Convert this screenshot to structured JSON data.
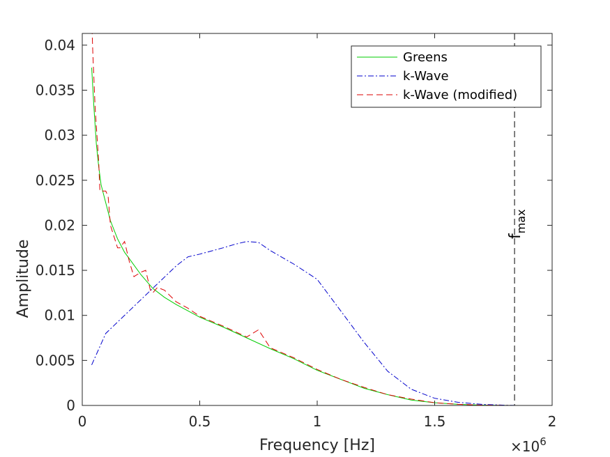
{
  "chart_data": {
    "type": "line",
    "xlabel": "Frequency [Hz]",
    "ylabel": "Amplitude",
    "x_multiplier_base": "×10",
    "x_multiplier_exp": "6",
    "xlim": [
      0,
      2000000
    ],
    "ylim": [
      0,
      0.0413
    ],
    "x_ticks": [
      0,
      500000,
      1000000,
      1500000,
      2000000
    ],
    "x_tick_labels": [
      "0",
      "0.5",
      "1",
      "1.5",
      "2"
    ],
    "y_ticks": [
      0,
      0.005,
      0.01,
      0.015,
      0.02,
      0.025,
      0.03,
      0.035,
      0.04
    ],
    "y_tick_labels": [
      "0",
      "0.005",
      "0.01",
      "0.015",
      "0.02",
      "0.025",
      "0.03",
      "0.035",
      "0.04"
    ],
    "grid": false,
    "legend_position": "top-right",
    "vline": {
      "x": 1840000,
      "label_main": "f",
      "label_sub": "max",
      "color": "#000000"
    },
    "series": [
      {
        "name": "Greens",
        "color": "#00cc00",
        "dash": "",
        "x": [
          40000,
          50000,
          60000,
          70000,
          80000,
          100000,
          120000,
          150000,
          180000,
          200000,
          250000,
          300000,
          350000,
          400000,
          500000,
          600000,
          700000,
          800000,
          900000,
          1000000,
          1100000,
          1200000,
          1300000,
          1400000,
          1500000,
          1600000,
          1700000,
          1800000,
          1840000
        ],
        "y": [
          0.0375,
          0.033,
          0.029,
          0.0265,
          0.0245,
          0.0225,
          0.0205,
          0.0185,
          0.017,
          0.0163,
          0.0145,
          0.013,
          0.012,
          0.0112,
          0.0098,
          0.0087,
          0.0075,
          0.0063,
          0.0052,
          0.0039,
          0.0029,
          0.0019,
          0.0012,
          0.0006,
          0.0003,
          0.00012,
          4e-05,
          1e-05,
          0
        ]
      },
      {
        "name": "k-Wave",
        "color": "#0000cc",
        "dash": "8,3,2,3",
        "x": [
          40000,
          100000,
          200000,
          300000,
          400000,
          450000,
          500000,
          600000,
          650000,
          700000,
          750000,
          800000,
          900000,
          1000000,
          1100000,
          1200000,
          1300000,
          1400000,
          1500000,
          1600000,
          1700000,
          1800000,
          1840000
        ],
        "y": [
          0.0045,
          0.008,
          0.0105,
          0.013,
          0.0155,
          0.0165,
          0.0168,
          0.0175,
          0.0179,
          0.0182,
          0.0181,
          0.0172,
          0.0157,
          0.014,
          0.0105,
          0.007,
          0.0038,
          0.0018,
          0.0008,
          0.00035,
          0.00012,
          3e-05,
          1e-05
        ]
      },
      {
        "name": "k-Wave (modified)",
        "color": "#dd0000",
        "dash": "9,5",
        "x": [
          40000,
          45000,
          55000,
          70000,
          75000,
          80000,
          100000,
          110000,
          120000,
          150000,
          160000,
          180000,
          200000,
          220000,
          250000,
          270000,
          290000,
          300000,
          320000,
          350000,
          400000,
          450000,
          500000,
          600000,
          700000,
          750000,
          800000,
          900000,
          1000000,
          1100000,
          1200000,
          1300000,
          1400000,
          1500000,
          1600000,
          1700000,
          1800000,
          1840000
        ],
        "y": [
          0.043,
          0.039,
          0.033,
          0.027,
          0.0238,
          0.0238,
          0.0238,
          0.0232,
          0.02,
          0.0175,
          0.0175,
          0.0182,
          0.016,
          0.0143,
          0.0148,
          0.015,
          0.0128,
          0.0125,
          0.0131,
          0.0128,
          0.0115,
          0.0108,
          0.0099,
          0.0088,
          0.0076,
          0.0084,
          0.0064,
          0.0053,
          0.004,
          0.0029,
          0.002,
          0.0012,
          0.0007,
          0.0003,
          0.00012,
          4e-05,
          1e-05,
          0
        ]
      }
    ]
  }
}
